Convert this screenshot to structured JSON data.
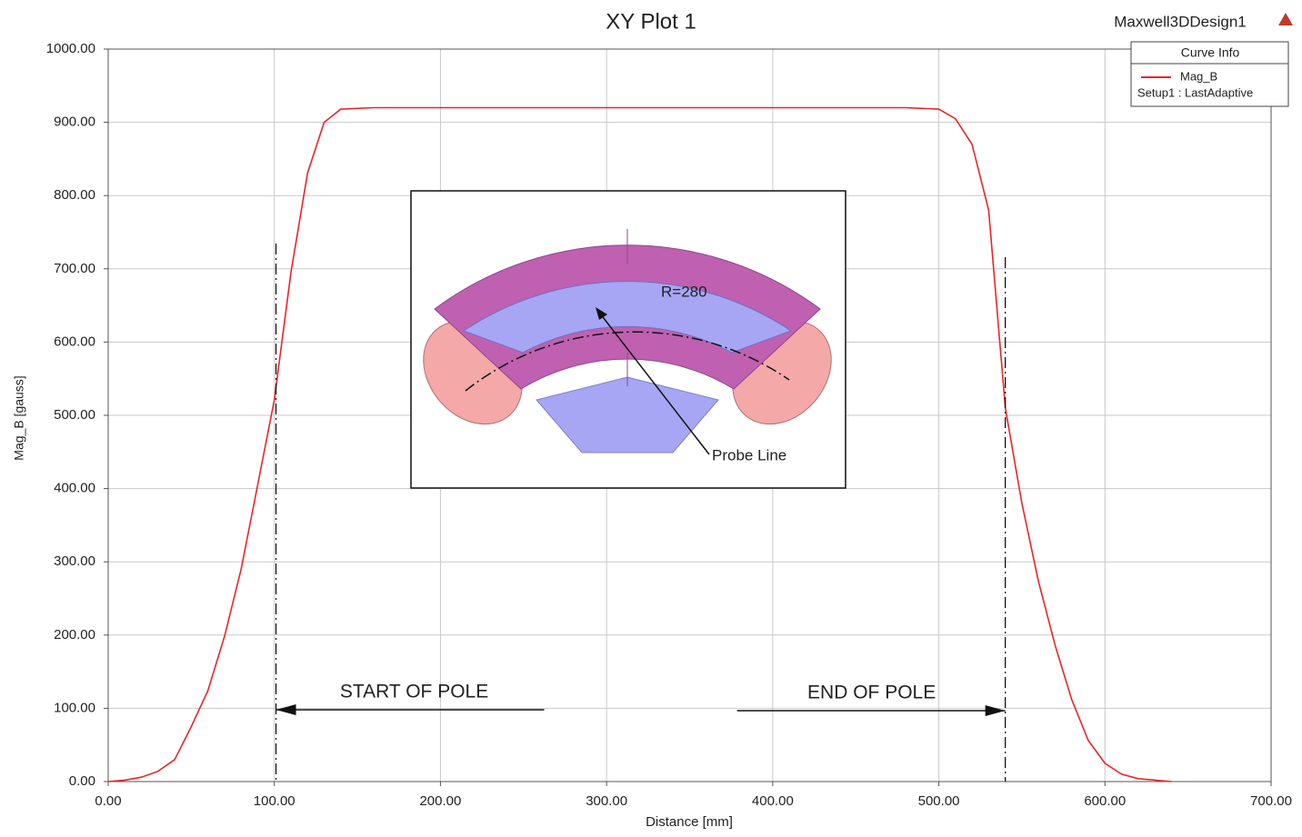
{
  "chart_data": {
    "type": "line",
    "title": "XY Plot 1",
    "design_name": "Maxwell3DDesign1",
    "x_label": "Distance [mm]",
    "y_label": "Mag_B [gauss]",
    "legend": {
      "title": "Curve Info",
      "corner": "top-right"
    },
    "series": [
      {
        "name": "Mag_B",
        "setup": "Setup1 : LastAdaptive",
        "color": "#e8262a",
        "x": [
          0,
          10,
          20,
          30,
          40,
          50,
          60,
          70,
          80,
          90,
          100,
          110,
          120,
          130,
          140,
          160,
          300,
          480,
          500,
          510,
          520,
          530,
          540,
          550,
          560,
          570,
          580,
          590,
          600,
          610,
          620,
          640
        ],
        "values": [
          0,
          2,
          6,
          14,
          30,
          75,
          124,
          198,
          290,
          405,
          521,
          695,
          831,
          900,
          918,
          920,
          920,
          920,
          918,
          905,
          870,
          780,
          510,
          380,
          273,
          186,
          112,
          56,
          25,
          10,
          4,
          0
        ]
      }
    ],
    "xlim": [
      0,
      700
    ],
    "ylim": [
      0,
      1000
    ],
    "xticks": [
      {
        "value": 0,
        "label": "0.00"
      },
      {
        "value": 100,
        "label": "100.00"
      },
      {
        "value": 200,
        "label": "200.00"
      },
      {
        "value": 300,
        "label": "300.00"
      },
      {
        "value": 400,
        "label": "400.00"
      },
      {
        "value": 500,
        "label": "500.00"
      },
      {
        "value": 600,
        "label": "600.00"
      },
      {
        "value": 700,
        "label": "700.00"
      }
    ],
    "yticks": [
      {
        "value": 0,
        "label": "0.00"
      },
      {
        "value": 100,
        "label": "100.00"
      },
      {
        "value": 200,
        "label": "200.00"
      },
      {
        "value": 300,
        "label": "300.00"
      },
      {
        "value": 400,
        "label": "400.00"
      },
      {
        "value": 500,
        "label": "500.00"
      },
      {
        "value": 600,
        "label": "600.00"
      },
      {
        "value": 700,
        "label": "700.00"
      },
      {
        "value": 800,
        "label": "800.00"
      },
      {
        "value": 900,
        "label": "900.00"
      },
      {
        "value": 1000,
        "label": "1000.00"
      }
    ],
    "grid": true,
    "markers": [
      {
        "x": 101,
        "label": "START OF POLE"
      },
      {
        "x": 540,
        "label": "END OF POLE"
      }
    ],
    "inset": {
      "radius_label": "R=280",
      "probe_label": "Probe Line"
    }
  }
}
